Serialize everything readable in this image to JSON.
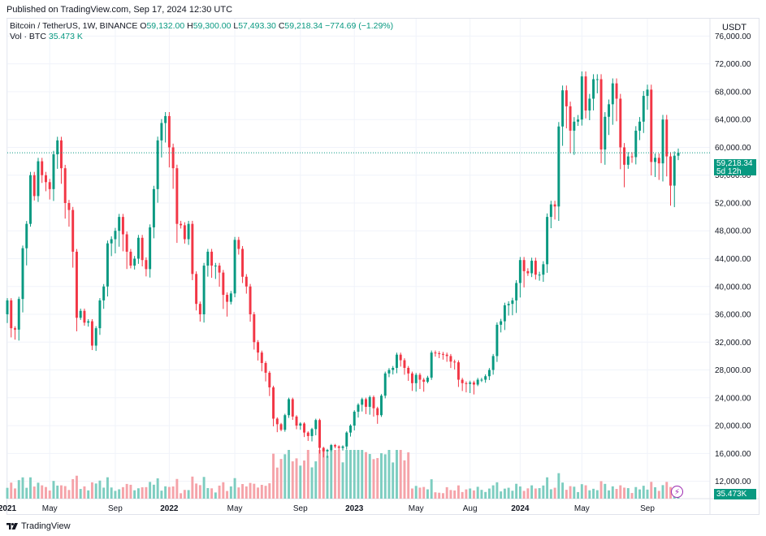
{
  "published": "Published on TradingView.com, Sep 17, 2024 12:30 UTC",
  "legend": {
    "symbol": "Bitcoin / TetherUS, 1W, BINANCE",
    "o_label": "O",
    "o_value": "59,132.00",
    "h_label": "H",
    "h_value": "59,300.00",
    "l_label": "L",
    "l_value": "57,493.30",
    "c_label": "C",
    "c_value": "59,218.34",
    "change": "−774.69 (−1.29%)",
    "vol_label": "Vol · BTC",
    "vol_value": "35.473 K"
  },
  "currency": "USDT",
  "last_price": "59,218.34",
  "countdown": "5d 12h",
  "last_volume": "35.473K",
  "footer_brand": "TradingView",
  "colors": {
    "up": "#089981",
    "down": "#f23645",
    "up_vol": "#7dcdc0",
    "down_vol": "#f5a3a9",
    "grid": "#f0f3fa",
    "accent": "#9c27b0"
  },
  "icons": {
    "logo": "tradingview-logo-icon",
    "bolt": "lightning-icon"
  },
  "chart_data": {
    "type": "candlestick",
    "symbol": "Bitcoin / TetherUS",
    "interval": "1W",
    "exchange": "BINANCE",
    "y_axis": {
      "ticks": [
        "76,000.00",
        "72,000.00",
        "68,000.00",
        "64,000.00",
        "60,000.00",
        "56,000.00",
        "52,000.00",
        "48,000.00",
        "44,000.00",
        "40,000.00",
        "36,000.00",
        "32,000.00",
        "28,000.00",
        "24,000.00",
        "20,000.00",
        "16,000.00",
        "12,000.00"
      ],
      "tick_values": [
        76000,
        72000,
        68000,
        64000,
        60000,
        56000,
        52000,
        48000,
        44000,
        40000,
        36000,
        32000,
        28000,
        24000,
        20000,
        16000,
        12000
      ],
      "range": [
        9500,
        78500
      ]
    },
    "x_axis": {
      "ticks": [
        "2021",
        "May",
        "Sep",
        "2022",
        "May",
        "Sep",
        "2023",
        "May",
        "Aug",
        "2024",
        "May",
        "Sep"
      ],
      "tick_index": [
        0,
        11,
        28,
        42,
        59,
        76,
        90,
        106,
        120,
        133,
        149,
        166
      ]
    },
    "close": [
      38000,
      34000,
      33800,
      38200,
      45500,
      49000,
      56000,
      53000,
      58000,
      56000,
      55000,
      54000,
      59000,
      61000,
      57000,
      52000,
      51000,
      45000,
      35500,
      36500,
      34800,
      35000,
      31500,
      34000,
      38000,
      40000,
      46200,
      46800,
      48000,
      50000,
      47500,
      45000,
      43000,
      44000,
      47000,
      43800,
      42500,
      48500,
      54000,
      61000,
      63500,
      64500,
      60000,
      57000,
      49000,
      48800,
      46800,
      49000,
      41800,
      37500,
      36000,
      43000,
      45000,
      43000,
      43000,
      42000,
      38800,
      37800,
      39000,
      46700,
      45400,
      41400,
      40000,
      36000,
      32000,
      30500,
      29000,
      27600,
      25500,
      21000,
      20200,
      19400,
      21500,
      23800,
      21300,
      20000,
      20300,
      19000,
      18500,
      19500,
      20800,
      16800,
      16300,
      16500,
      17200,
      17000,
      16800,
      17000,
      19000,
      20000,
      22000,
      23000,
      23800,
      22700,
      24100,
      22500,
      21500,
      24300,
      27500,
      28000,
      28300,
      30200,
      29400,
      28300,
      27500,
      26100,
      27300,
      26600,
      26300,
      26900,
      30500,
      30400,
      30300,
      30200,
      30000,
      29200,
      29100,
      26600,
      26100,
      26000,
      26200,
      25900,
      26600,
      26600,
      27100,
      28000,
      30000,
      34500,
      35000,
      37300,
      37500,
      38000,
      40500,
      43800,
      42200,
      41900,
      43700,
      41700,
      41700,
      43200,
      50000,
      51800,
      51500,
      63000,
      68200,
      65900,
      62400,
      63700,
      64000,
      70200,
      65300,
      67000,
      69800,
      69800,
      59700,
      64400,
      66200,
      69200,
      67000,
      60000,
      57500,
      58700,
      58600,
      62400,
      63700,
      67400,
      68300,
      57900,
      58500,
      57700,
      64000,
      58700,
      54500,
      58800,
      59218
    ]
  }
}
